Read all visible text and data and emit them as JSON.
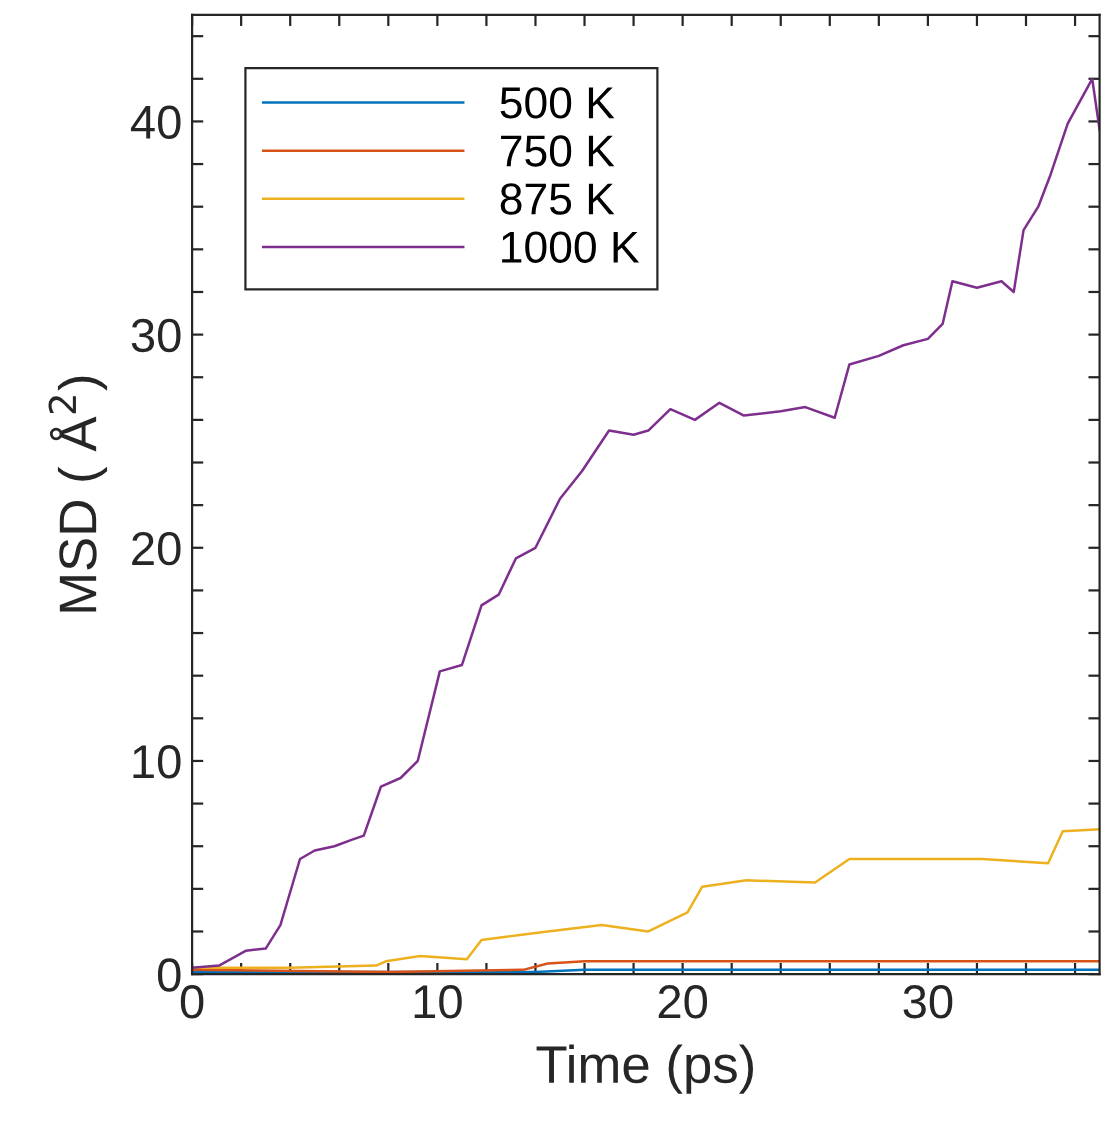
{
  "chart_data": {
    "type": "line",
    "xlabel": "Time (ps)",
    "ylabel": "MSD ( Å$^{2}$)",
    "xlim": [
      0,
      37
    ],
    "ylim": [
      0,
      45
    ],
    "xticks": [
      0,
      {
        "value": 2,
        "label": null
      },
      {
        "value": 4,
        "label": null
      },
      {
        "value": 6,
        "label": null
      },
      {
        "value": 8,
        "label": null
      },
      10,
      {
        "value": 12,
        "label": null
      },
      {
        "value": 14,
        "label": null
      },
      {
        "value": 16,
        "label": null
      },
      {
        "value": 18,
        "label": null
      },
      20,
      {
        "value": 22,
        "label": null
      },
      {
        "value": 24,
        "label": null
      },
      {
        "value": 26,
        "label": null
      },
      {
        "value": 28,
        "label": null
      },
      30,
      {
        "value": 32,
        "label": null
      },
      {
        "value": 34,
        "label": null
      },
      {
        "value": 36,
        "label": null
      }
    ],
    "yticks": [
      0,
      {
        "value": 2,
        "label": null
      },
      {
        "value": 4,
        "label": null
      },
      {
        "value": 6,
        "label": null
      },
      {
        "value": 8,
        "label": null
      },
      10,
      {
        "value": 12,
        "label": null
      },
      {
        "value": 14,
        "label": null
      },
      {
        "value": 16,
        "label": null
      },
      {
        "value": 18,
        "label": null
      },
      20,
      {
        "value": 22,
        "label": null
      },
      {
        "value": 24,
        "label": null
      },
      {
        "value": 26,
        "label": null
      },
      {
        "value": 28,
        "label": null
      },
      30,
      {
        "value": 32,
        "label": null
      },
      {
        "value": 34,
        "label": null
      },
      {
        "value": 36,
        "label": null
      },
      {
        "value": 38,
        "label": null
      },
      40,
      {
        "value": 42,
        "label": null
      },
      {
        "value": 44,
        "label": null
      }
    ],
    "grid": false,
    "legend": "top left",
    "marker": "none",
    "line_style": "solid",
    "series": [
      {
        "name": "500 K",
        "color": "#0072bd",
        "x": [
          0,
          14,
          16,
          37
        ],
        "values": [
          0.1,
          0.1,
          0.2,
          0.2
        ]
      },
      {
        "name": "750 K",
        "color": "#d95319",
        "x": [
          0,
          8,
          13.5,
          14.5,
          16,
          25,
          30,
          37
        ],
        "values": [
          0.2,
          0.1,
          0.2,
          0.5,
          0.6,
          0.6,
          0.6,
          0.6
        ]
      },
      {
        "name": "875 K",
        "color": "#edb120",
        "x": [
          0,
          4,
          7.5,
          7.9,
          9.3,
          11.2,
          11.8,
          14.5,
          16.7,
          18.6,
          20.2,
          20.8,
          22.6,
          25.4,
          26.8,
          29.5,
          32.2,
          34.9,
          35.5,
          37
        ],
        "values": [
          0.3,
          0.3,
          0.4,
          0.6,
          0.85,
          0.7,
          1.6,
          2,
          2.3,
          2,
          2.9,
          4.1,
          4.4,
          4.3,
          5.4,
          5.4,
          5.4,
          5.2,
          6.7,
          6.8
        ]
      },
      {
        "name": "1000 K",
        "color": "#7e2f8e",
        "x": [
          0,
          1.1,
          2.2,
          3,
          3.6,
          4.4,
          5,
          5.8,
          6.5,
          7,
          7.7,
          8.5,
          9.2,
          10.1,
          11,
          11.8,
          12.5,
          13.2,
          14,
          15,
          15.9,
          17,
          18,
          18.6,
          19.5,
          20.5,
          21.5,
          22.5,
          24,
          25,
          26.2,
          26.8,
          28,
          29,
          30,
          30.6,
          31,
          32,
          33,
          33.5,
          33.9,
          34.5,
          35,
          35.7,
          36.7,
          37
        ],
        "values": [
          0.3,
          0.4,
          1.1,
          1.2,
          2.3,
          5.4,
          5.8,
          6,
          6.3,
          6.5,
          8.8,
          9.2,
          10,
          14.2,
          14.5,
          17.3,
          17.8,
          19.5,
          20,
          22.3,
          23.6,
          25.5,
          25.3,
          25.5,
          26.5,
          26,
          26.8,
          26.2,
          26.4,
          26.6,
          26.1,
          28.6,
          29,
          29.5,
          29.8,
          30.5,
          32.5,
          32.2,
          32.5,
          32,
          34.9,
          36,
          37.5,
          39.9,
          42,
          39.6
        ]
      }
    ]
  }
}
